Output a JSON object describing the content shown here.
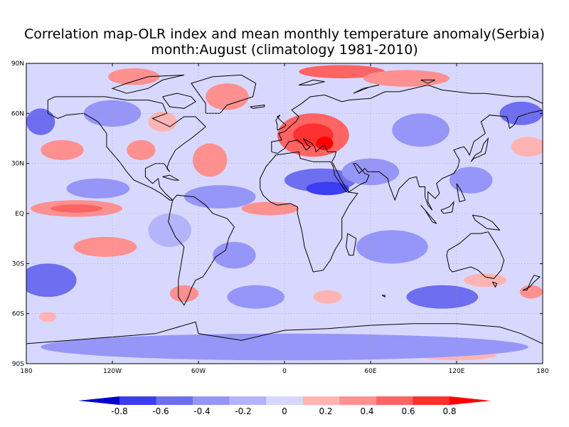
{
  "title": {
    "line1": "Correlation map-OLR index and mean monthly temperature anomaly(Serbia)",
    "line2": "month:August (climatology 1981-2010)"
  },
  "map": {
    "projection": "equirectangular",
    "lon_range": [
      -180,
      180
    ],
    "lat_range": [
      -90,
      90
    ],
    "lat_ticks": [
      {
        "value": 90,
        "label": "90N"
      },
      {
        "value": 60,
        "label": "60N"
      },
      {
        "value": 30,
        "label": "30N"
      },
      {
        "value": 0,
        "label": "EQ"
      },
      {
        "value": -30,
        "label": "30S"
      },
      {
        "value": -60,
        "label": "60S"
      },
      {
        "value": -90,
        "label": "90S"
      }
    ],
    "lon_ticks": [
      {
        "value": -180,
        "label": "180"
      },
      {
        "value": -120,
        "label": "120W"
      },
      {
        "value": -60,
        "label": "60W"
      },
      {
        "value": 0,
        "label": "0"
      },
      {
        "value": 60,
        "label": "60E"
      },
      {
        "value": 120,
        "label": "120E"
      },
      {
        "value": 180,
        "label": "180"
      }
    ],
    "background_class_color": "#d8d8ff",
    "field_patches": [
      {
        "lon": 20,
        "lat": 47,
        "rlon": 25,
        "rlat": 13,
        "level": "r3"
      },
      {
        "lon": 20,
        "lat": 47,
        "rlon": 14,
        "rlat": 7,
        "level": "r4"
      },
      {
        "lon": 28,
        "lat": 42,
        "rlon": 6,
        "rlat": 4,
        "level": "r5"
      },
      {
        "lon": 40,
        "lat": 85,
        "rlon": 30,
        "rlat": 4,
        "level": "r3"
      },
      {
        "lon": 85,
        "lat": 81,
        "rlon": 30,
        "rlat": 5,
        "level": "r2"
      },
      {
        "lon": -105,
        "lat": 82,
        "rlon": 18,
        "rlat": 5,
        "level": "r2"
      },
      {
        "lon": -40,
        "lat": 70,
        "rlon": 15,
        "rlat": 8,
        "level": "r2"
      },
      {
        "lon": -85,
        "lat": 55,
        "rlon": 10,
        "rlat": 6,
        "level": "r1"
      },
      {
        "lon": -155,
        "lat": 38,
        "rlon": 15,
        "rlat": 6,
        "level": "r2"
      },
      {
        "lon": -100,
        "lat": 38,
        "rlon": 10,
        "rlat": 6,
        "level": "r2"
      },
      {
        "lon": -52,
        "lat": 32,
        "rlon": 12,
        "rlat": 10,
        "level": "r2"
      },
      {
        "lon": -145,
        "lat": 3,
        "rlon": 32,
        "rlat": 5,
        "level": "r2"
      },
      {
        "lon": -145,
        "lat": 3,
        "rlon": 18,
        "rlat": 2.5,
        "level": "r3"
      },
      {
        "lon": -10,
        "lat": 3,
        "rlon": 20,
        "rlat": 4,
        "level": "r2"
      },
      {
        "lon": -125,
        "lat": -20,
        "rlon": 22,
        "rlat": 6,
        "level": "r2"
      },
      {
        "lon": -70,
        "lat": -48,
        "rlon": 10,
        "rlat": 5,
        "level": "r2"
      },
      {
        "lon": 140,
        "lat": -40,
        "rlon": 15,
        "rlat": 4,
        "level": "r1"
      },
      {
        "lon": 172,
        "lat": -47,
        "rlon": 8,
        "rlat": 4,
        "level": "r2"
      },
      {
        "lon": 170,
        "lat": 40,
        "rlon": 12,
        "rlat": 6,
        "level": "r1"
      },
      {
        "lon": 30,
        "lat": -50,
        "rlon": 10,
        "rlat": 4,
        "level": "r1"
      },
      {
        "lon": -165,
        "lat": -62,
        "rlon": 6,
        "rlat": 3,
        "level": "r1"
      },
      {
        "lon": 120,
        "lat": -85,
        "rlon": 28,
        "rlat": 3,
        "level": "r1"
      },
      {
        "lon": 25,
        "lat": 20,
        "rlon": 25,
        "rlat": 7,
        "level": "b3"
      },
      {
        "lon": 30,
        "lat": 15,
        "rlon": 15,
        "rlat": 4,
        "level": "b4"
      },
      {
        "lon": -165,
        "lat": -40,
        "rlon": 20,
        "rlat": 10,
        "level": "b3"
      },
      {
        "lon": -130,
        "lat": 15,
        "rlon": 22,
        "rlat": 6,
        "level": "b2"
      },
      {
        "lon": 95,
        "lat": 50,
        "rlon": 20,
        "rlat": 10,
        "level": "b2"
      },
      {
        "lon": 165,
        "lat": 60,
        "rlon": 15,
        "rlat": 7,
        "level": "b3"
      },
      {
        "lon": -170,
        "lat": 55,
        "rlon": 10,
        "rlat": 8,
        "level": "b3"
      },
      {
        "lon": -45,
        "lat": 10,
        "rlon": 25,
        "rlat": 7,
        "level": "b2"
      },
      {
        "lon": 75,
        "lat": -20,
        "rlon": 25,
        "rlat": 10,
        "level": "b2"
      },
      {
        "lon": 110,
        "lat": -50,
        "rlon": 25,
        "rlat": 7,
        "level": "b3"
      },
      {
        "lon": -20,
        "lat": -50,
        "rlon": 20,
        "rlat": 7,
        "level": "b2"
      },
      {
        "lon": 0,
        "lat": -80,
        "rlon": 170,
        "rlat": 8,
        "level": "b2"
      },
      {
        "lon": -120,
        "lat": 60,
        "rlon": 20,
        "rlat": 8,
        "level": "b2"
      },
      {
        "lon": 130,
        "lat": 20,
        "rlon": 15,
        "rlat": 8,
        "level": "b2"
      },
      {
        "lon": -35,
        "lat": -25,
        "rlon": 15,
        "rlat": 8,
        "level": "b2"
      },
      {
        "lon": -80,
        "lat": -10,
        "rlon": 15,
        "rlat": 10,
        "level": "b1"
      },
      {
        "lon": 60,
        "lat": 25,
        "rlon": 20,
        "rlat": 8,
        "level": "b2"
      }
    ]
  },
  "colorbar": {
    "labels": [
      "-0.8",
      "-0.6",
      "-0.4",
      "-0.2",
      "0",
      "0.2",
      "0.4",
      "0.6",
      "0.8"
    ],
    "classes": [
      {
        "key": "b5",
        "color": "#0000d0"
      },
      {
        "key": "b4",
        "color": "#3c3cf0"
      },
      {
        "key": "b3",
        "color": "#6e6ef0"
      },
      {
        "key": "b2",
        "color": "#9696f8"
      },
      {
        "key": "b1",
        "color": "#b4b4fa"
      },
      {
        "key": "n",
        "color": "#d8d8ff"
      },
      {
        "key": "r1",
        "color": "#ffb4b4"
      },
      {
        "key": "r2",
        "color": "#ff9090"
      },
      {
        "key": "r3",
        "color": "#ff6464"
      },
      {
        "key": "r4",
        "color": "#ff3030"
      },
      {
        "key": "r5",
        "color": "#ff0000"
      }
    ]
  }
}
